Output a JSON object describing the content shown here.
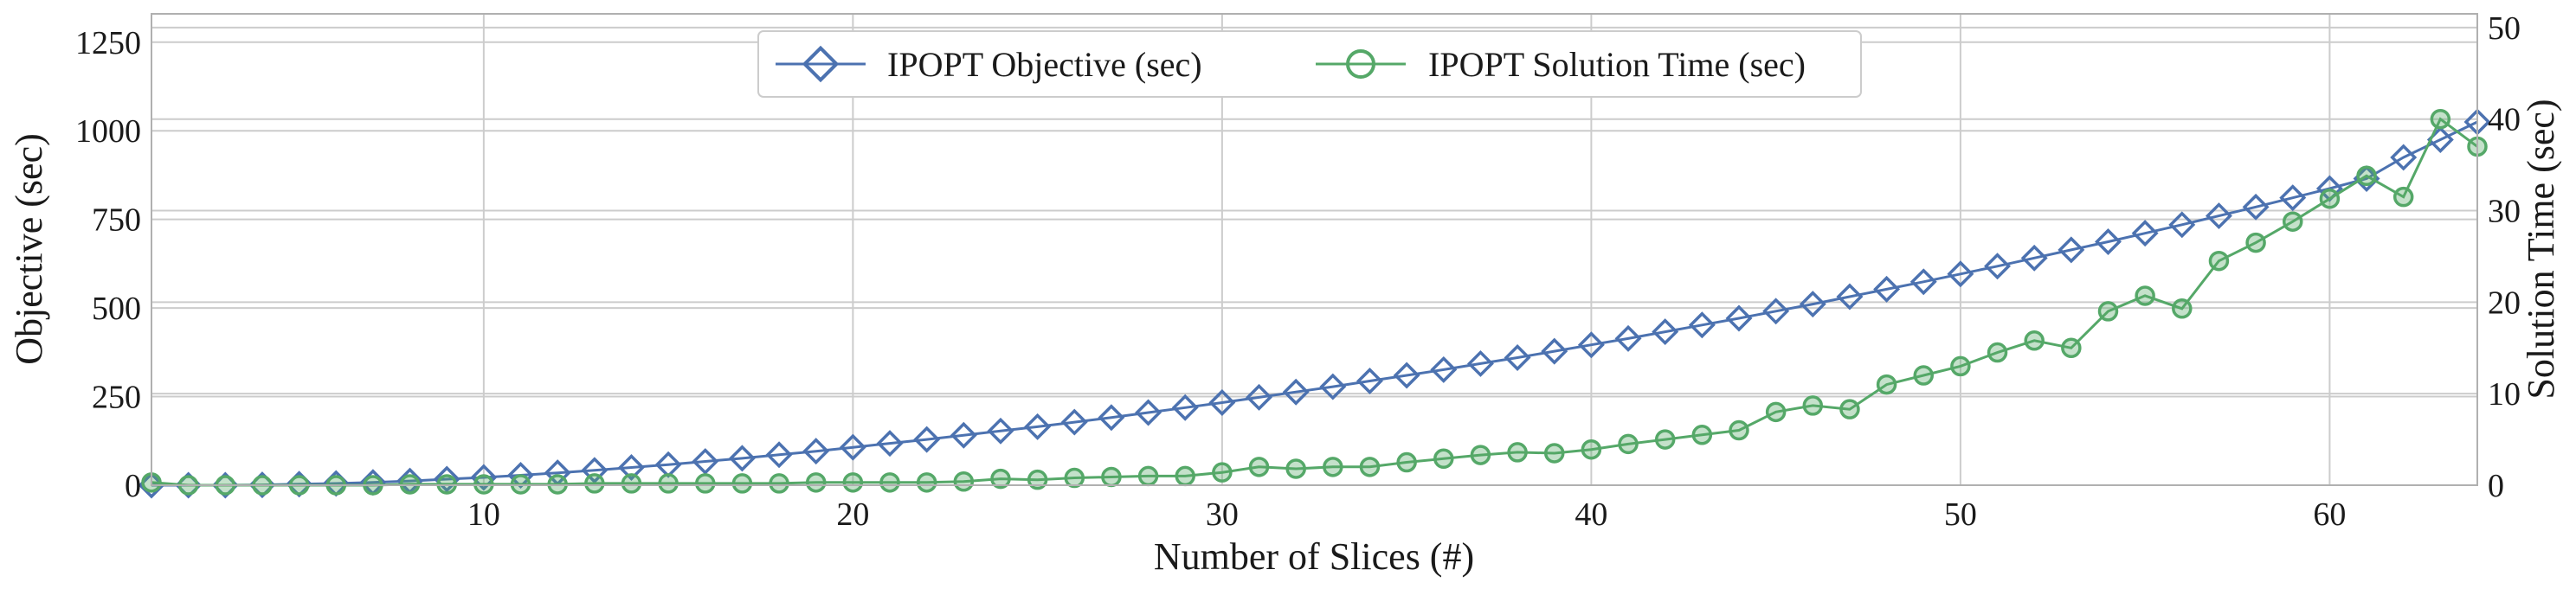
{
  "chart_data": {
    "type": "line",
    "xlabel": "Number of Slices (#)",
    "ylabel": "Objective (sec)",
    "y2label": "Solution Time (sec)",
    "xlim": [
      1,
      64
    ],
    "ylim": [
      0,
      1330
    ],
    "y2lim": [
      0,
      51.5
    ],
    "xticks": [
      10,
      20,
      30,
      40,
      50,
      60
    ],
    "yticks": [
      0,
      250,
      500,
      750,
      1000,
      1250
    ],
    "y2ticks": [
      0,
      10,
      20,
      30,
      40,
      50
    ],
    "grid": true,
    "legend_position": "top-center",
    "x": [
      1,
      2,
      3,
      4,
      5,
      6,
      7,
      8,
      9,
      10,
      11,
      12,
      13,
      14,
      15,
      16,
      17,
      18,
      19,
      20,
      21,
      22,
      23,
      24,
      25,
      26,
      27,
      28,
      29,
      30,
      31,
      32,
      33,
      34,
      35,
      36,
      37,
      38,
      39,
      40,
      41,
      42,
      43,
      44,
      45,
      46,
      47,
      48,
      49,
      50,
      51,
      52,
      53,
      54,
      55,
      56,
      57,
      58,
      59,
      60,
      61,
      62,
      63,
      64
    ],
    "series": [
      {
        "name": "IPOPT Objective (sec)",
        "axis": "left",
        "color": "#4c72b0",
        "marker": "diamond",
        "values": [
          0,
          0,
          0,
          1,
          3,
          5,
          8,
          12,
          17,
          22,
          28,
          35,
          42,
          50,
          58,
          67,
          76,
          86,
          96,
          107,
          118,
          129,
          141,
          153,
          165,
          178,
          191,
          205,
          219,
          233,
          248,
          263,
          278,
          294,
          310,
          326,
          343,
          360,
          378,
          396,
          414,
          433,
          452,
          471,
          491,
          511,
          532,
          553,
          574,
          596,
          618,
          641,
          664,
          687,
          711,
          735,
          760,
          785,
          811,
          837,
          865,
          925,
          975,
          1025
        ]
      },
      {
        "name": "IPOPT Solution Time (sec)",
        "axis": "right",
        "color": "#55a868",
        "marker": "circle",
        "values": [
          0.3,
          0,
          0,
          0,
          0,
          0,
          0,
          0.1,
          0.1,
          0.1,
          0.1,
          0.1,
          0.2,
          0.2,
          0.2,
          0.2,
          0.2,
          0.2,
          0.3,
          0.3,
          0.3,
          0.3,
          0.4,
          0.7,
          0.6,
          0.8,
          0.9,
          1.0,
          1.0,
          1.4,
          2.0,
          1.8,
          2.0,
          2.0,
          2.5,
          2.9,
          3.3,
          3.6,
          3.5,
          3.9,
          4.5,
          5.0,
          5.5,
          6.0,
          8.0,
          8.7,
          8.3,
          11.0,
          12.0,
          13.0,
          14.5,
          15.8,
          15.0,
          19.0,
          20.7,
          19.3,
          24.5,
          26.5,
          28.8,
          31.3,
          33.8,
          31.5,
          40.0,
          37.0
        ]
      }
    ]
  }
}
